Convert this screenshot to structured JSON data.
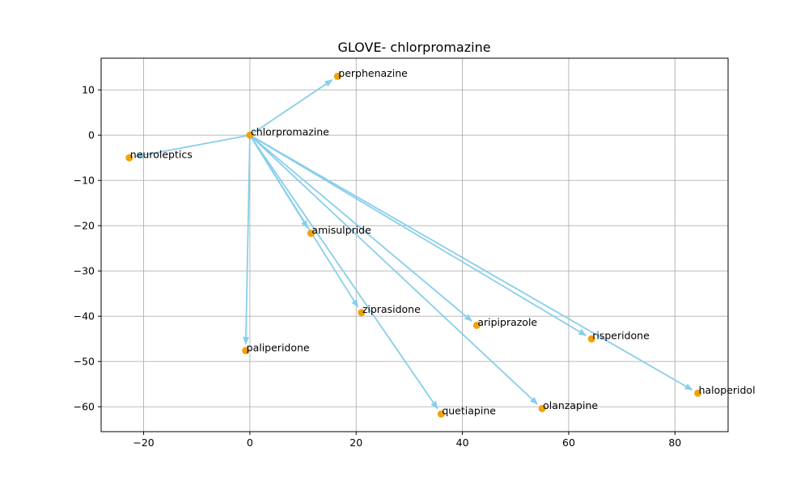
{
  "chart_data": {
    "type": "scatter",
    "title": "GLOVE- chlorpromazine",
    "xlabel": "",
    "ylabel": "",
    "xlim": [
      -28,
      90
    ],
    "ylim": [
      -65.5,
      17
    ],
    "xticks": [
      -20,
      0,
      20,
      40,
      60,
      80
    ],
    "yticks": [
      10,
      0,
      -10,
      -20,
      -30,
      -40,
      -50,
      -60
    ],
    "xtick_labels": [
      "−20",
      "0",
      "20",
      "40",
      "60",
      "80"
    ],
    "ytick_labels": [
      "10",
      "0",
      "−10",
      "−20",
      "−30",
      "−40",
      "−50",
      "−60"
    ],
    "grid": true,
    "point_color": "#f0a30a",
    "arrow_color": "#87ceeb",
    "source": {
      "label": "chlorpromazine",
      "x": 0,
      "y": 0
    },
    "points": [
      {
        "label": "perphenazine",
        "x": 16.5,
        "y": 13
      },
      {
        "label": "neuroleptics",
        "x": -22.7,
        "y": -5
      },
      {
        "label": "amisulpride",
        "x": 11.5,
        "y": -21.7
      },
      {
        "label": "ziprasidone",
        "x": 21,
        "y": -39.2
      },
      {
        "label": "paliperidone",
        "x": -0.8,
        "y": -47.6
      },
      {
        "label": "aripiprazole",
        "x": 42.7,
        "y": -42
      },
      {
        "label": "risperidone",
        "x": 64.3,
        "y": -45
      },
      {
        "label": "haloperidol",
        "x": 84.3,
        "y": -57
      },
      {
        "label": "olanzapine",
        "x": 55,
        "y": -60.4
      },
      {
        "label": "quetiapine",
        "x": 36,
        "y": -61.6
      }
    ]
  }
}
